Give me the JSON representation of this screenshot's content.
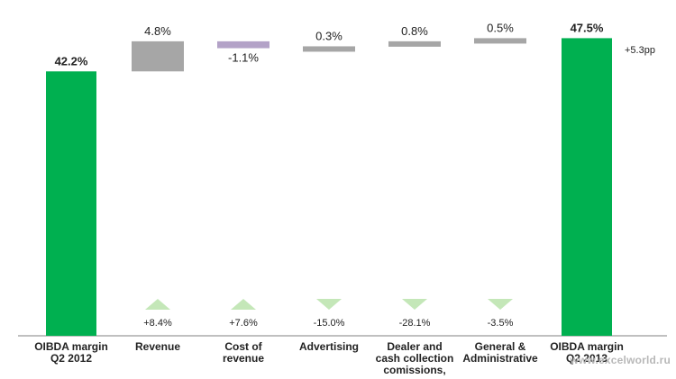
{
  "chart_data": {
    "type": "waterfall",
    "ylim": [
      0,
      50
    ],
    "categories": [
      "OIBDA margin Q2 2012",
      "Revenue",
      "Cost of revenue",
      "Advertising",
      "Dealer and cash collection comissions,",
      "General & Administrative",
      "OIBDA margin Q2 2013"
    ],
    "category_lines": [
      [
        "OIBDA margin",
        "Q2 2012"
      ],
      [
        "Revenue"
      ],
      [
        "Cost of",
        "revenue"
      ],
      [
        "Advertising"
      ],
      [
        "Dealer and",
        "cash collection",
        "comissions,"
      ],
      [
        "General &",
        "Administrative"
      ],
      [
        "OIBDA margin",
        "Q2 2013"
      ]
    ],
    "bars": [
      {
        "kind": "total",
        "start": 0,
        "end": 42.2,
        "label": "42.2%",
        "color": "#00b050"
      },
      {
        "kind": "delta",
        "start": 42.2,
        "end": 47.0,
        "label": "4.8%",
        "color": "#a6a6a6"
      },
      {
        "kind": "delta",
        "start": 47.0,
        "end": 45.9,
        "label": "-1.1%",
        "color": "#b3a2c7"
      },
      {
        "kind": "delta",
        "start": 45.9,
        "end": 46.2,
        "label": "0.3%",
        "color": "#a6a6a6"
      },
      {
        "kind": "delta",
        "start": 46.2,
        "end": 47.0,
        "label": "0.8%",
        "color": "#a6a6a6"
      },
      {
        "kind": "delta",
        "start": 47.0,
        "end": 47.5,
        "label": "0.5%",
        "color": "#a6a6a6"
      },
      {
        "kind": "total",
        "start": 0,
        "end": 47.5,
        "label": "47.5%",
        "color": "#00b050"
      }
    ],
    "change_indicators": [
      null,
      {
        "direction": "up",
        "label": "+8.4%"
      },
      {
        "direction": "up",
        "label": "+7.6%"
      },
      {
        "direction": "down",
        "label": "-15.0%"
      },
      {
        "direction": "down",
        "label": "-28.1%"
      },
      {
        "direction": "down",
        "label": "-3.5%"
      },
      null
    ],
    "annotation": "+5.3pp",
    "indicator_color": "#c4e7b8",
    "grid": false,
    "legend": "none"
  },
  "watermark": "www.excelworld.ru"
}
